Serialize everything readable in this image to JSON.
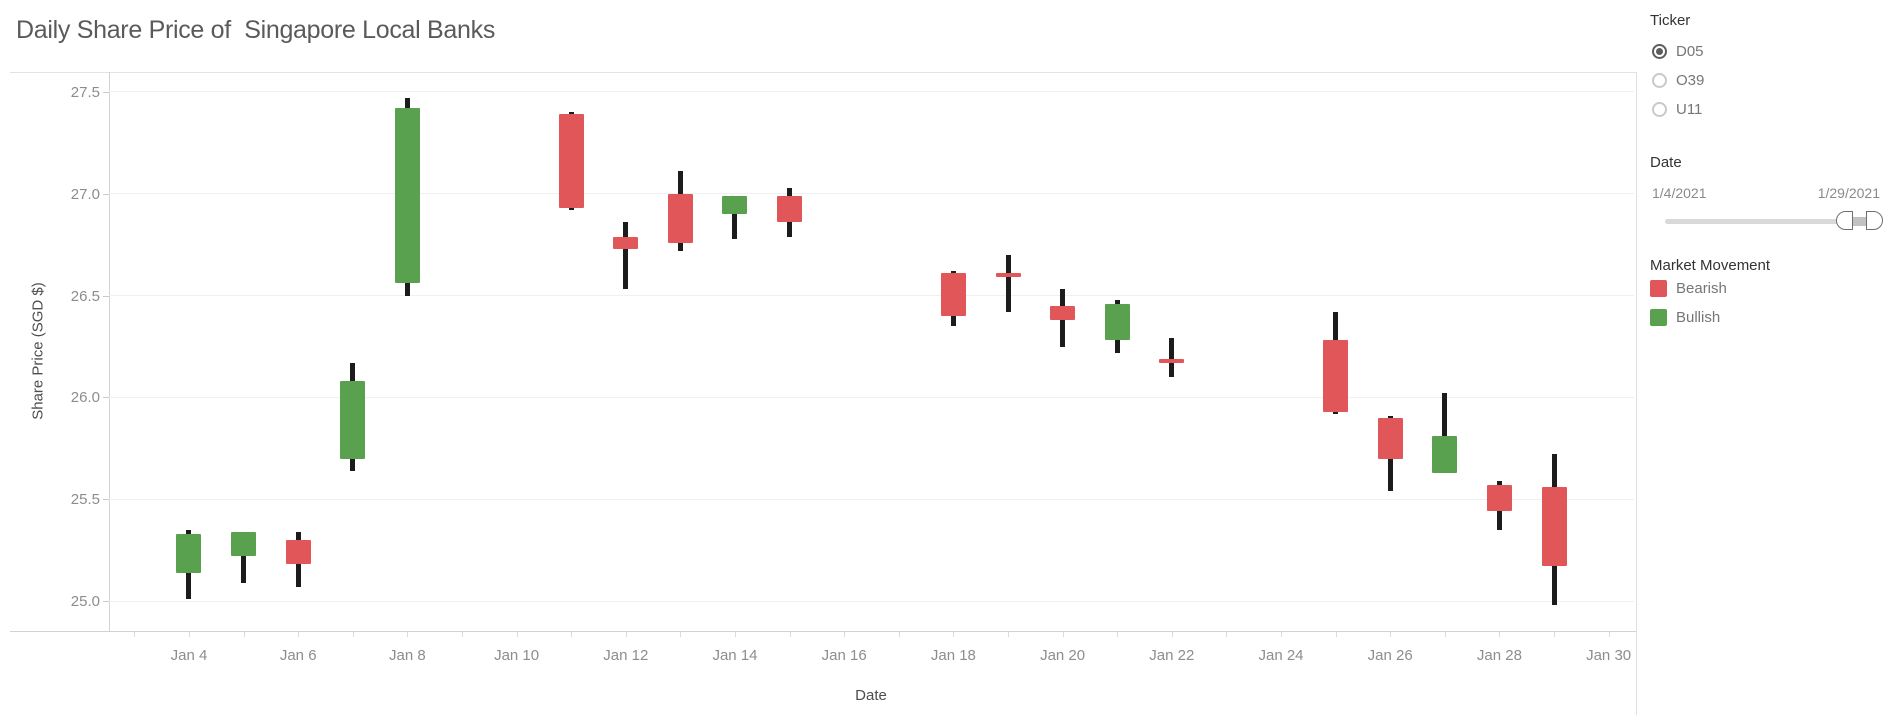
{
  "title": "Daily Share Price of  Singapore Local Banks",
  "sidebar": {
    "ticker": {
      "label": "Ticker",
      "options": [
        {
          "label": "D05",
          "selected": true
        },
        {
          "label": "O39",
          "selected": false
        },
        {
          "label": "U11",
          "selected": false
        }
      ]
    },
    "date_filter": {
      "label": "Date",
      "start": "1/4/2021",
      "end": "1/29/2021"
    },
    "legend": {
      "label": "Market Movement",
      "items": [
        {
          "label": "Bearish",
          "color": "#e15759"
        },
        {
          "label": "Bullish",
          "color": "#59a14f"
        }
      ]
    }
  },
  "chart_data": {
    "type": "candlestick",
    "title": "Daily Share Price of  Singapore Local Banks",
    "xlabel": "Date",
    "ylabel": "Share Price (SGD $)",
    "month": "Jan",
    "xlim_days": [
      2.535,
      30.465
    ],
    "ylim": [
      24.853,
      27.598
    ],
    "grid": "horizontal",
    "colors": {
      "bearish": "#e15759",
      "bullish": "#59a14f",
      "wick": "#1c1c1c"
    },
    "y_ticks": [
      {
        "v": 25.0,
        "label": "25.0"
      },
      {
        "v": 25.5,
        "label": "25.5"
      },
      {
        "v": 26.0,
        "label": "26.0"
      },
      {
        "v": 26.5,
        "label": "26.5"
      },
      {
        "v": 27.0,
        "label": "27.0"
      },
      {
        "v": 27.5,
        "label": "27.5"
      }
    ],
    "x_ticks": [
      {
        "day": 4,
        "label": "Jan 4"
      },
      {
        "day": 6,
        "label": "Jan 6"
      },
      {
        "day": 8,
        "label": "Jan 8"
      },
      {
        "day": 10,
        "label": "Jan 10"
      },
      {
        "day": 12,
        "label": "Jan 12"
      },
      {
        "day": 14,
        "label": "Jan 14"
      },
      {
        "day": 16,
        "label": "Jan 16"
      },
      {
        "day": 18,
        "label": "Jan 18"
      },
      {
        "day": 20,
        "label": "Jan 20"
      },
      {
        "day": 22,
        "label": "Jan 22"
      },
      {
        "day": 24,
        "label": "Jan 24"
      },
      {
        "day": 26,
        "label": "Jan 26"
      },
      {
        "day": 28,
        "label": "Jan 28"
      },
      {
        "day": 30,
        "label": "Jan 30"
      }
    ],
    "series": [
      {
        "date": "Jan 4",
        "day": 4,
        "open": 25.14,
        "high": 25.35,
        "low": 25.01,
        "close": 25.33,
        "movement": "Bullish"
      },
      {
        "date": "Jan 5",
        "day": 5,
        "open": 25.22,
        "high": 25.34,
        "low": 25.09,
        "close": 25.34,
        "movement": "Bullish"
      },
      {
        "date": "Jan 6",
        "day": 6,
        "open": 25.3,
        "high": 25.34,
        "low": 25.07,
        "close": 25.18,
        "movement": "Bearish"
      },
      {
        "date": "Jan 7",
        "day": 7,
        "open": 25.7,
        "high": 26.17,
        "low": 25.64,
        "close": 26.08,
        "movement": "Bullish"
      },
      {
        "date": "Jan 8",
        "day": 8,
        "open": 26.56,
        "high": 27.47,
        "low": 26.5,
        "close": 27.42,
        "movement": "Bullish"
      },
      {
        "date": "Jan 11",
        "day": 11,
        "open": 27.39,
        "high": 27.4,
        "low": 26.92,
        "close": 26.93,
        "movement": "Bearish"
      },
      {
        "date": "Jan 12",
        "day": 12,
        "open": 26.79,
        "high": 26.86,
        "low": 26.53,
        "close": 26.73,
        "movement": "Bearish"
      },
      {
        "date": "Jan 13",
        "day": 13,
        "open": 27.0,
        "high": 27.11,
        "low": 26.72,
        "close": 26.76,
        "movement": "Bearish"
      },
      {
        "date": "Jan 14",
        "day": 14,
        "open": 26.9,
        "high": 26.99,
        "low": 26.78,
        "close": 26.99,
        "movement": "Bullish"
      },
      {
        "date": "Jan 15",
        "day": 15,
        "open": 26.99,
        "high": 27.03,
        "low": 26.79,
        "close": 26.86,
        "movement": "Bearish"
      },
      {
        "date": "Jan 18",
        "day": 18,
        "open": 26.61,
        "high": 26.62,
        "low": 26.35,
        "close": 26.4,
        "movement": "Bearish"
      },
      {
        "date": "Jan 19",
        "day": 19,
        "open": 26.61,
        "high": 26.7,
        "low": 26.42,
        "close": 26.59,
        "movement": "Bearish"
      },
      {
        "date": "Jan 20",
        "day": 20,
        "open": 26.45,
        "high": 26.53,
        "low": 26.25,
        "close": 26.38,
        "movement": "Bearish"
      },
      {
        "date": "Jan 21",
        "day": 21,
        "open": 26.28,
        "high": 26.48,
        "low": 26.22,
        "close": 26.46,
        "movement": "Bullish"
      },
      {
        "date": "Jan 22",
        "day": 22,
        "open": 26.19,
        "high": 26.29,
        "low": 26.1,
        "close": 26.17,
        "movement": "Bearish"
      },
      {
        "date": "Jan 25",
        "day": 25,
        "open": 26.28,
        "high": 26.42,
        "low": 25.92,
        "close": 25.93,
        "movement": "Bearish"
      },
      {
        "date": "Jan 26",
        "day": 26,
        "open": 25.9,
        "high": 25.91,
        "low": 25.54,
        "close": 25.7,
        "movement": "Bearish"
      },
      {
        "date": "Jan 27",
        "day": 27,
        "open": 25.63,
        "high": 26.02,
        "low": 25.63,
        "close": 25.81,
        "movement": "Bullish"
      },
      {
        "date": "Jan 28",
        "day": 28,
        "open": 25.57,
        "high": 25.59,
        "low": 25.35,
        "close": 25.44,
        "movement": "Bearish"
      },
      {
        "date": "Jan 29",
        "day": 29,
        "open": 25.56,
        "high": 25.72,
        "low": 24.98,
        "close": 25.17,
        "movement": "Bearish"
      }
    ]
  }
}
